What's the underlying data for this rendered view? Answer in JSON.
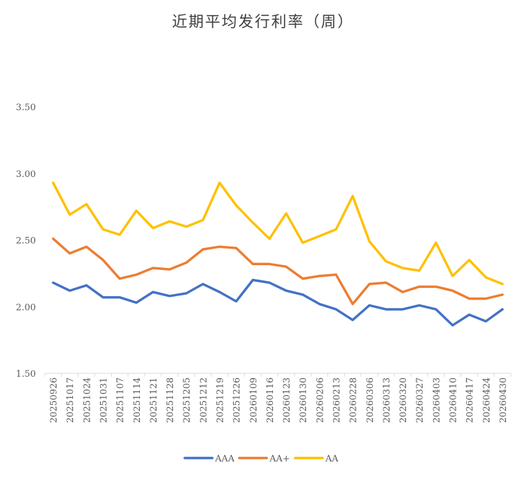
{
  "chart_data": {
    "type": "line",
    "title": "近期平均发行利率（周）",
    "xlabel": "",
    "ylabel": "",
    "ylim": [
      1.5,
      3.5
    ],
    "yticks": [
      "1.50",
      "2.00",
      "2.50",
      "3.00",
      "3.50"
    ],
    "grid": false,
    "legend": "bottom",
    "x": [
      "20250926",
      "20251017",
      "20251024",
      "20251031",
      "20251107",
      "20251114",
      "20251121",
      "20251128",
      "20251205",
      "20251212",
      "20251219",
      "20251226",
      "20260109",
      "20260116",
      "20260123",
      "20260130",
      "20260206",
      "20260213",
      "20260228",
      "20260306",
      "20260313",
      "20260320",
      "20260327",
      "20260403",
      "20260410",
      "20260417",
      "20260424",
      "20260430"
    ],
    "series": [
      {
        "name": "AAA",
        "color": "#4472C4",
        "values": [
          2.18,
          2.12,
          2.16,
          2.07,
          2.07,
          2.03,
          2.11,
          2.08,
          2.1,
          2.17,
          2.11,
          2.04,
          2.2,
          2.18,
          2.12,
          2.09,
          2.02,
          1.98,
          1.9,
          2.01,
          1.98,
          1.98,
          2.01,
          1.98,
          1.86,
          1.94,
          1.89,
          1.98
        ]
      },
      {
        "name": "AA+",
        "color": "#ED7D31",
        "values": [
          2.51,
          2.4,
          2.45,
          2.35,
          2.21,
          2.24,
          2.29,
          2.28,
          2.33,
          2.43,
          2.45,
          2.44,
          2.32,
          2.32,
          2.3,
          2.21,
          2.23,
          2.24,
          2.02,
          2.17,
          2.18,
          2.11,
          2.15,
          2.15,
          2.12,
          2.06,
          2.06,
          2.09
        ]
      },
      {
        "name": "AA",
        "color": "#FFC000",
        "values": [
          2.93,
          2.69,
          2.77,
          2.58,
          2.54,
          2.72,
          2.59,
          2.64,
          2.6,
          2.65,
          2.93,
          2.76,
          2.63,
          2.51,
          2.7,
          2.48,
          2.53,
          2.58,
          2.83,
          2.49,
          2.34,
          2.29,
          2.27,
          2.48,
          2.23,
          2.35,
          2.22,
          2.17
        ]
      }
    ]
  }
}
